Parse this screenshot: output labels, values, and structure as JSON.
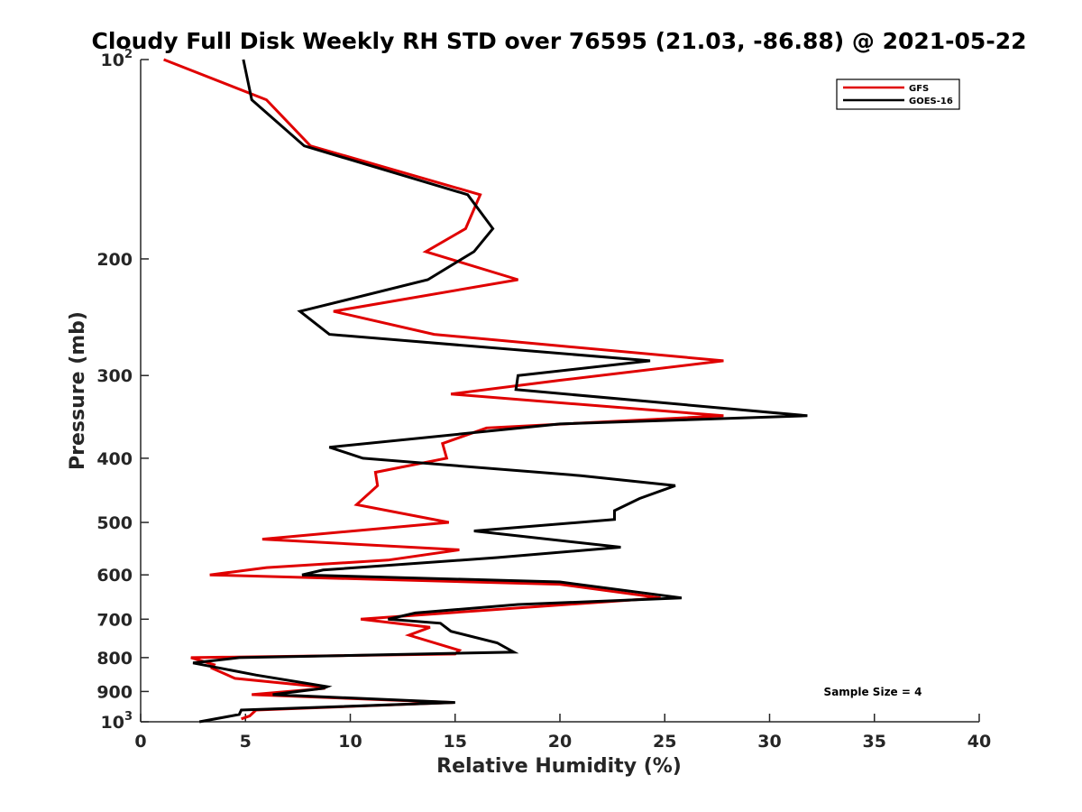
{
  "chart_data": {
    "type": "line",
    "title": "Cloudy Full Disk Weekly RH STD over 76595 (21.03, -86.88) @ 2021-05-22",
    "xlabel": "Relative Humidity (%)",
    "ylabel": "Pressure (mb)",
    "xlim": [
      0,
      40
    ],
    "ylim": [
      100,
      1000
    ],
    "yscale": "log",
    "yreversed": true,
    "xticks": [
      0,
      5,
      10,
      15,
      20,
      25,
      30,
      35,
      40
    ],
    "xtick_labels": [
      "0",
      "5",
      "10",
      "15",
      "20",
      "25",
      "30",
      "35",
      "40"
    ],
    "yticks": [
      {
        "value": 100,
        "base": "10",
        "exp": "2"
      },
      {
        "value": 200,
        "label": "200"
      },
      {
        "value": 300,
        "label": "300"
      },
      {
        "value": 400,
        "label": "400"
      },
      {
        "value": 500,
        "label": "500"
      },
      {
        "value": 600,
        "label": "600"
      },
      {
        "value": 700,
        "label": "700"
      },
      {
        "value": 800,
        "label": "800"
      },
      {
        "value": 900,
        "label": "900"
      },
      {
        "value": 1000,
        "base": "10",
        "exp": "3"
      }
    ],
    "legend": {
      "position": "top-right"
    },
    "annotation": "Sample Size = 4",
    "series": [
      {
        "name": "GFS",
        "color": "#e00000",
        "points": [
          [
            1.1,
            100
          ],
          [
            6.0,
            115
          ],
          [
            8.1,
            135
          ],
          [
            16.2,
            160
          ],
          [
            15.5,
            180
          ],
          [
            13.6,
            195
          ],
          [
            18.0,
            215
          ],
          [
            9.2,
            240
          ],
          [
            14.0,
            260
          ],
          [
            27.8,
            285
          ],
          [
            20.0,
            305
          ],
          [
            14.8,
            320
          ],
          [
            27.8,
            345
          ],
          [
            16.5,
            360
          ],
          [
            14.4,
            380
          ],
          [
            14.6,
            400
          ],
          [
            11.2,
            420
          ],
          [
            11.3,
            440
          ],
          [
            10.3,
            470
          ],
          [
            14.7,
            500
          ],
          [
            5.8,
            530
          ],
          [
            15.2,
            550
          ],
          [
            11.8,
            570
          ],
          [
            6.0,
            585
          ],
          [
            3.3,
            600
          ],
          [
            20.0,
            620
          ],
          [
            24.8,
            650
          ],
          [
            16.0,
            680
          ],
          [
            10.5,
            700
          ],
          [
            13.8,
            720
          ],
          [
            12.8,
            740
          ],
          [
            15.2,
            780
          ],
          [
            15.0,
            790
          ],
          [
            2.4,
            800
          ],
          [
            3.5,
            820
          ],
          [
            3.4,
            830
          ],
          [
            4.5,
            860
          ],
          [
            8.5,
            885
          ],
          [
            8.8,
            890
          ],
          [
            5.3,
            910
          ],
          [
            14.9,
            935
          ],
          [
            5.5,
            960
          ],
          [
            5.2,
            980
          ],
          [
            4.8,
            990
          ]
        ]
      },
      {
        "name": "GOES-16",
        "color": "#000000",
        "points": [
          [
            4.9,
            100
          ],
          [
            5.3,
            115
          ],
          [
            7.8,
            135
          ],
          [
            15.6,
            160
          ],
          [
            16.8,
            180
          ],
          [
            15.9,
            195
          ],
          [
            13.7,
            215
          ],
          [
            7.6,
            240
          ],
          [
            9.0,
            260
          ],
          [
            24.3,
            285
          ],
          [
            18.0,
            300
          ],
          [
            17.9,
            315
          ],
          [
            31.8,
            345
          ],
          [
            20.0,
            355
          ],
          [
            9.0,
            385
          ],
          [
            10.6,
            400
          ],
          [
            21.0,
            425
          ],
          [
            25.5,
            440
          ],
          [
            23.8,
            460
          ],
          [
            22.6,
            480
          ],
          [
            22.6,
            495
          ],
          [
            15.9,
            515
          ],
          [
            22.9,
            545
          ],
          [
            17.0,
            565
          ],
          [
            8.7,
            590
          ],
          [
            7.7,
            600
          ],
          [
            20.0,
            615
          ],
          [
            25.8,
            650
          ],
          [
            18.0,
            665
          ],
          [
            13.1,
            685
          ],
          [
            11.8,
            700
          ],
          [
            14.3,
            710
          ],
          [
            14.8,
            730
          ],
          [
            17.0,
            760
          ],
          [
            17.8,
            785
          ],
          [
            4.7,
            800
          ],
          [
            2.5,
            815
          ],
          [
            5.5,
            850
          ],
          [
            8.9,
            885
          ],
          [
            8.7,
            890
          ],
          [
            6.3,
            910
          ],
          [
            15.0,
            935
          ],
          [
            4.8,
            960
          ],
          [
            4.7,
            975
          ],
          [
            2.8,
            1000
          ]
        ]
      }
    ]
  }
}
